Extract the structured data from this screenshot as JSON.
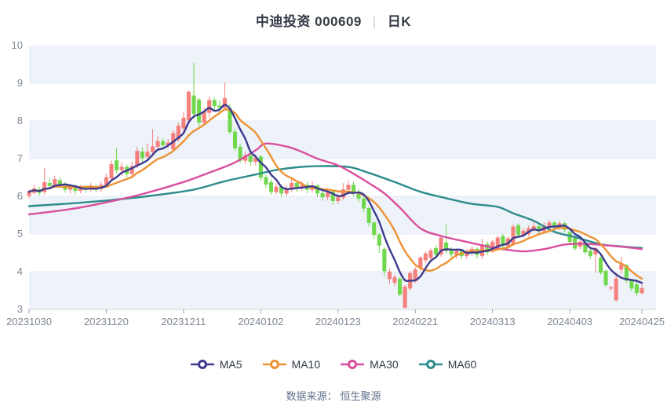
{
  "header": {
    "title": "中迪投资 000609",
    "separator": "|",
    "period_label": "日K"
  },
  "legend": {
    "items": [
      {
        "label": "MA5",
        "color": "#3d3b8e"
      },
      {
        "label": "MA10",
        "color": "#ed9234"
      },
      {
        "label": "MA30",
        "color": "#d94f9e"
      },
      {
        "label": "MA60",
        "color": "#2d8c8c"
      }
    ]
  },
  "footer": {
    "source_label": "数据来源：",
    "source_value": "恒生聚源"
  },
  "chart_data": {
    "type": "candlestick",
    "title": "中迪投资 000609 日K",
    "ylim": [
      3,
      10
    ],
    "y_ticks": [
      3,
      4,
      5,
      6,
      7,
      8,
      9,
      10
    ],
    "grid": "horizontal-bands",
    "legend_position": "bottom",
    "colors": {
      "up": "#f4807d",
      "down": "#70d84d",
      "band": "#eef2f9",
      "gridline": "#e6ebf4",
      "axis_line": "#ccd2dc",
      "tick": "#9aa2b0",
      "label": "#7e8795",
      "ma5": "#3d3b8e",
      "ma10": "#ed9234",
      "ma30": "#d94f9e",
      "ma60": "#2d8c8c"
    },
    "x_tick_indices": [
      0,
      15,
      30,
      45,
      60,
      75,
      90,
      105,
      119
    ],
    "x_tick_labels": [
      "20231030",
      "20231120",
      "20231211",
      "20240102",
      "20240123",
      "20240221",
      "20240313",
      "20240403",
      "20240425"
    ],
    "dates": [
      "20231030",
      "20231031",
      "20231101",
      "20231102",
      "20231103",
      "20231106",
      "20231107",
      "20231108",
      "20231109",
      "20231110",
      "20231113",
      "20231114",
      "20231115",
      "20231116",
      "20231117",
      "20231120",
      "20231121",
      "20231122",
      "20231123",
      "20231124",
      "20231127",
      "20231128",
      "20231129",
      "20231130",
      "20231201",
      "20231204",
      "20231205",
      "20231206",
      "20231207",
      "20231208",
      "20231211",
      "20231212",
      "20231213",
      "20231214",
      "20231215",
      "20231218",
      "20231219",
      "20231220",
      "20231221",
      "20231222",
      "20231225",
      "20231226",
      "20231227",
      "20231228",
      "20231229",
      "20240102",
      "20240103",
      "20240104",
      "20240105",
      "20240108",
      "20240109",
      "20240110",
      "20240111",
      "20240112",
      "20240115",
      "20240116",
      "20240117",
      "20240118",
      "20240119",
      "20240122",
      "20240123",
      "20240124",
      "20240125",
      "20240126",
      "20240129",
      "20240130",
      "20240131",
      "20240201",
      "20240202",
      "20240205",
      "20240206",
      "20240207",
      "20240208",
      "20240219",
      "20240220",
      "20240221",
      "20240222",
      "20240223",
      "20240226",
      "20240227",
      "20240228",
      "20240229",
      "20240301",
      "20240304",
      "20240305",
      "20240306",
      "20240307",
      "20240308",
      "20240311",
      "20240312",
      "20240313",
      "20240314",
      "20240315",
      "20240318",
      "20240319",
      "20240320",
      "20240321",
      "20240322",
      "20240325",
      "20240326",
      "20240327",
      "20240328",
      "20240329",
      "20240401",
      "20240402",
      "20240403",
      "20240408",
      "20240409",
      "20240410",
      "20240411",
      "20240412",
      "20240415",
      "20240416",
      "20240417",
      "20240418",
      "20240419",
      "20240422",
      "20240423",
      "20240424",
      "20240425"
    ],
    "ohlc_order": [
      "open",
      "close",
      "low",
      "high"
    ],
    "ohlc": [
      [
        6.02,
        6.12,
        5.95,
        6.18
      ],
      [
        6.1,
        6.2,
        6.05,
        6.3
      ],
      [
        6.18,
        6.1,
        6.02,
        6.25
      ],
      [
        6.12,
        6.37,
        6.05,
        6.75
      ],
      [
        6.35,
        6.28,
        6.2,
        6.48
      ],
      [
        6.3,
        6.45,
        6.25,
        6.55
      ],
      [
        6.42,
        6.3,
        6.22,
        6.5
      ],
      [
        6.3,
        6.18,
        6.1,
        6.38
      ],
      [
        6.18,
        6.25,
        6.08,
        6.33
      ],
      [
        6.25,
        6.15,
        6.05,
        6.3
      ],
      [
        6.15,
        6.22,
        6.08,
        6.3
      ],
      [
        6.22,
        6.18,
        6.1,
        6.3
      ],
      [
        6.18,
        6.25,
        6.12,
        6.35
      ],
      [
        6.25,
        6.2,
        6.1,
        6.32
      ],
      [
        6.2,
        6.3,
        6.12,
        6.4
      ],
      [
        6.3,
        6.5,
        6.25,
        6.6
      ],
      [
        6.48,
        6.85,
        6.4,
        6.95
      ],
      [
        6.95,
        6.7,
        6.6,
        7.28
      ],
      [
        6.7,
        6.78,
        6.55,
        6.9
      ],
      [
        6.78,
        6.6,
        6.5,
        6.85
      ],
      [
        6.6,
        6.8,
        6.52,
        6.92
      ],
      [
        6.82,
        7.2,
        6.75,
        7.32
      ],
      [
        7.18,
        7.02,
        6.9,
        7.3
      ],
      [
        7.05,
        7.18,
        6.95,
        7.4
      ],
      [
        7.18,
        7.32,
        7.05,
        7.78
      ],
      [
        7.32,
        7.46,
        7.2,
        7.6
      ],
      [
        7.46,
        7.36,
        7.25,
        7.55
      ],
      [
        7.36,
        7.42,
        7.28,
        7.52
      ],
      [
        7.25,
        7.67,
        7.18,
        7.75
      ],
      [
        7.52,
        7.87,
        7.45,
        7.95
      ],
      [
        7.81,
        8.08,
        7.7,
        8.23
      ],
      [
        8.02,
        8.77,
        7.95,
        8.81
      ],
      [
        8.67,
        8.19,
        8.05,
        9.54
      ],
      [
        8.56,
        7.96,
        7.85,
        8.6
      ],
      [
        7.96,
        8.25,
        7.88,
        8.35
      ],
      [
        8.22,
        8.55,
        8.1,
        8.65
      ],
      [
        8.55,
        8.4,
        8.25,
        8.62
      ],
      [
        8.4,
        8.35,
        8.2,
        8.55
      ],
      [
        8.35,
        8.6,
        8.28,
        9.02
      ],
      [
        8.33,
        7.71,
        7.65,
        8.45
      ],
      [
        7.71,
        7.28,
        7.2,
        7.8
      ],
      [
        7.31,
        6.95,
        6.88,
        7.4
      ],
      [
        6.95,
        7.08,
        6.85,
        7.18
      ],
      [
        7.08,
        6.92,
        6.8,
        7.15
      ],
      [
        6.92,
        7.02,
        6.82,
        7.12
      ],
      [
        7.05,
        6.5,
        6.42,
        7.1
      ],
      [
        6.5,
        6.32,
        6.22,
        6.58
      ],
      [
        6.37,
        6.12,
        6.05,
        6.45
      ],
      [
        6.12,
        6.25,
        6.05,
        6.35
      ],
      [
        6.25,
        6.08,
        5.98,
        6.3
      ],
      [
        6.08,
        6.2,
        6.0,
        6.3
      ],
      [
        6.2,
        6.35,
        6.12,
        6.5
      ],
      [
        6.35,
        6.22,
        6.12,
        6.42
      ],
      [
        6.22,
        6.3,
        6.15,
        6.4
      ],
      [
        6.3,
        6.18,
        6.08,
        6.38
      ],
      [
        6.18,
        6.28,
        6.1,
        6.4
      ],
      [
        6.28,
        6.08,
        5.98,
        6.32
      ],
      [
        6.08,
        5.98,
        5.88,
        6.15
      ],
      [
        5.98,
        6.12,
        5.9,
        6.22
      ],
      [
        6.12,
        5.88,
        5.78,
        6.18
      ],
      [
        5.88,
        5.97,
        5.8,
        6.1
      ],
      [
        5.97,
        6.18,
        5.9,
        6.35
      ],
      [
        6.18,
        6.3,
        6.08,
        6.42
      ],
      [
        6.3,
        6.12,
        6.0,
        6.38
      ],
      [
        6.12,
        5.94,
        5.85,
        6.2
      ],
      [
        5.94,
        5.68,
        5.58,
        6.0
      ],
      [
        5.68,
        5.3,
        5.2,
        5.72
      ],
      [
        5.3,
        4.98,
        4.88,
        5.35
      ],
      [
        4.98,
        4.7,
        4.5,
        5.02
      ],
      [
        4.6,
        4.02,
        3.88,
        4.65
      ],
      [
        3.81,
        4.0,
        3.67,
        4.1
      ],
      [
        3.71,
        3.85,
        3.62,
        3.92
      ],
      [
        3.81,
        3.4,
        3.35,
        3.86
      ],
      [
        3.05,
        3.6,
        3.04,
        3.65
      ],
      [
        3.56,
        3.96,
        3.5,
        4.02
      ],
      [
        3.75,
        4.06,
        3.7,
        4.12
      ],
      [
        4.1,
        4.37,
        4.02,
        4.42
      ],
      [
        4.31,
        4.48,
        4.22,
        4.55
      ],
      [
        4.37,
        4.56,
        4.3,
        4.62
      ],
      [
        4.62,
        4.46,
        4.38,
        4.7
      ],
      [
        4.46,
        4.9,
        4.4,
        4.95
      ],
      [
        4.77,
        4.56,
        4.48,
        5.25
      ],
      [
        4.56,
        4.46,
        4.38,
        4.65
      ],
      [
        4.46,
        4.55,
        4.35,
        4.62
      ],
      [
        4.55,
        4.42,
        4.32,
        4.6
      ],
      [
        4.42,
        4.52,
        4.33,
        4.6
      ],
      [
        4.52,
        4.6,
        4.42,
        4.68
      ],
      [
        4.6,
        4.45,
        4.35,
        4.65
      ],
      [
        4.42,
        4.69,
        4.35,
        4.87
      ],
      [
        4.73,
        4.52,
        4.44,
        4.8
      ],
      [
        4.58,
        4.79,
        4.5,
        4.85
      ],
      [
        4.67,
        4.9,
        4.6,
        4.96
      ],
      [
        4.94,
        4.68,
        4.56,
        5.0
      ],
      [
        4.68,
        4.88,
        4.6,
        4.95
      ],
      [
        4.73,
        5.19,
        4.68,
        5.25
      ],
      [
        5.23,
        4.98,
        4.9,
        5.28
      ],
      [
        4.98,
        5.08,
        4.9,
        5.15
      ],
      [
        5.0,
        5.15,
        4.94,
        5.22
      ],
      [
        5.12,
        5.2,
        5.05,
        5.33
      ],
      [
        5.2,
        5.08,
        5.0,
        5.26
      ],
      [
        5.08,
        5.22,
        5.02,
        5.3
      ],
      [
        5.22,
        5.3,
        5.15,
        5.38
      ],
      [
        5.3,
        5.18,
        5.1,
        5.35
      ],
      [
        5.18,
        5.28,
        5.12,
        5.34
      ],
      [
        5.28,
        5.12,
        5.05,
        5.32
      ],
      [
        5.04,
        4.8,
        4.75,
        5.1
      ],
      [
        4.9,
        4.62,
        4.56,
        4.94
      ],
      [
        4.67,
        4.79,
        4.6,
        4.85
      ],
      [
        4.77,
        4.52,
        4.46,
        4.8
      ],
      [
        4.55,
        4.42,
        4.35,
        4.62
      ],
      [
        4.46,
        4.62,
        3.98,
        4.66
      ],
      [
        4.37,
        3.98,
        3.92,
        4.4
      ],
      [
        4.02,
        3.65,
        3.6,
        4.05
      ],
      [
        3.57,
        3.58,
        3.5,
        3.62
      ],
      [
        3.25,
        3.81,
        3.2,
        3.92
      ],
      [
        4.06,
        4.19,
        3.96,
        4.4
      ],
      [
        4.17,
        3.77,
        3.7,
        4.2
      ],
      [
        3.77,
        3.56,
        3.48,
        3.8
      ],
      [
        3.66,
        3.44,
        3.35,
        3.81
      ],
      [
        3.44,
        3.56,
        3.4,
        3.67
      ]
    ],
    "ma_series": [
      {
        "name": "MA5",
        "window": 5,
        "from_close": true
      },
      {
        "name": "MA10",
        "window": 10,
        "from_close": true
      },
      {
        "name": "MA30",
        "anchors": [
          [
            0,
            5.52
          ],
          [
            8,
            5.66
          ],
          [
            15,
            5.84
          ],
          [
            22,
            6.06
          ],
          [
            30,
            6.38
          ],
          [
            36,
            6.68
          ],
          [
            40,
            6.9
          ],
          [
            44,
            7.22
          ],
          [
            46,
            7.4
          ],
          [
            50,
            7.32
          ],
          [
            53,
            7.18
          ],
          [
            56,
            7.0
          ],
          [
            60,
            6.82
          ],
          [
            63,
            6.6
          ],
          [
            66,
            6.35
          ],
          [
            69,
            6.08
          ],
          [
            72,
            5.7
          ],
          [
            76,
            5.15
          ],
          [
            80,
            4.95
          ],
          [
            84,
            4.82
          ],
          [
            88,
            4.7
          ],
          [
            92,
            4.6
          ],
          [
            96,
            4.54
          ],
          [
            100,
            4.6
          ],
          [
            104,
            4.72
          ],
          [
            108,
            4.74
          ],
          [
            112,
            4.7
          ],
          [
            116,
            4.65
          ],
          [
            119,
            4.6
          ]
        ]
      },
      {
        "name": "MA60",
        "anchors": [
          [
            0,
            5.74
          ],
          [
            8,
            5.81
          ],
          [
            16,
            5.9
          ],
          [
            24,
            6.02
          ],
          [
            32,
            6.18
          ],
          [
            38,
            6.4
          ],
          [
            44,
            6.58
          ],
          [
            48,
            6.7
          ],
          [
            52,
            6.77
          ],
          [
            56,
            6.8
          ],
          [
            62,
            6.78
          ],
          [
            66,
            6.62
          ],
          [
            71,
            6.38
          ],
          [
            76,
            6.12
          ],
          [
            81,
            5.95
          ],
          [
            86,
            5.8
          ],
          [
            91,
            5.72
          ],
          [
            94,
            5.55
          ],
          [
            98,
            5.35
          ],
          [
            102,
            5.06
          ],
          [
            106,
            4.92
          ],
          [
            111,
            4.73
          ],
          [
            115,
            4.67
          ],
          [
            119,
            4.63
          ]
        ]
      }
    ]
  }
}
